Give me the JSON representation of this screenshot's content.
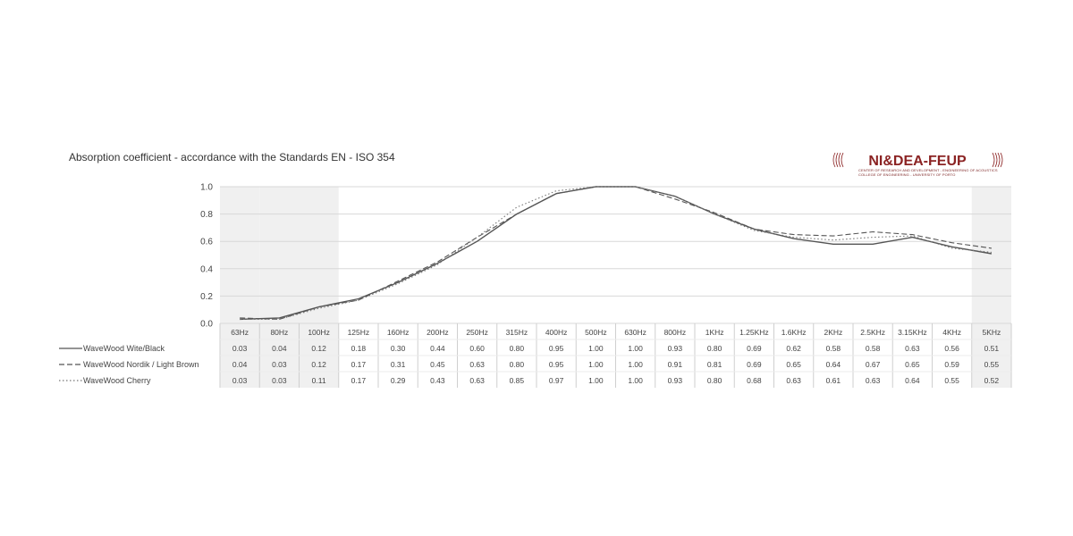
{
  "title": "Absorption coefficient   -   accordance with the Standards EN - ISO 354",
  "logo": {
    "text": "NI&DEA-FEUP",
    "subtext_line1": "CENTER OF RESEARCH AND DEVELOPMENT - ENGINEERING OF ACOUSTICS",
    "subtext_line2": "COLLEGE OF ENGINEERING - UNIVERSITY OF PORTO",
    "color": "#8b2323"
  },
  "chart_data": {
    "type": "line",
    "title": "Absorption coefficient   -   accordance with the Standards EN - ISO 354",
    "xlabel": "",
    "ylabel": "",
    "ylim": [
      0,
      1
    ],
    "yticks": [
      "0.0",
      "0.2",
      "0.4",
      "0.6",
      "0.8",
      "1.0"
    ],
    "grid": true,
    "categories": [
      "63Hz",
      "80Hz",
      "100Hz",
      "125Hz",
      "160Hz",
      "200Hz",
      "250Hz",
      "315Hz",
      "400Hz",
      "500Hz",
      "630Hz",
      "800Hz",
      "1KHz",
      "1.25KHz",
      "1.6KHz",
      "2KHz",
      "2.5KHz",
      "3.15KHz",
      "4KHz",
      "5KHz"
    ],
    "shaded_categories": [
      "63Hz",
      "80Hz",
      "100Hz",
      "5KHz"
    ],
    "series": [
      {
        "name": "WaveWood Wite/Black",
        "style": "solid",
        "color": "#555555",
        "values": [
          0.03,
          0.04,
          0.12,
          0.18,
          0.3,
          0.44,
          0.6,
          0.8,
          0.95,
          1.0,
          1.0,
          0.93,
          0.8,
          0.69,
          0.62,
          0.58,
          0.58,
          0.63,
          0.56,
          0.51
        ],
        "labels": [
          "0.03",
          "0.04",
          "0.12",
          "0.18",
          "0.30",
          "0.44",
          "0.60",
          "0.80",
          "0.95",
          "1.00",
          "1.00",
          "0.93",
          "0.80",
          "0.69",
          "0.62",
          "0.58",
          "0.58",
          "0.63",
          "0.56",
          "0.51"
        ]
      },
      {
        "name": "WaveWood  Nordik / Light Brown",
        "style": "dashed",
        "color": "#555555",
        "values": [
          0.04,
          0.03,
          0.12,
          0.17,
          0.31,
          0.45,
          0.63,
          0.8,
          0.95,
          1.0,
          1.0,
          0.91,
          0.81,
          0.69,
          0.65,
          0.64,
          0.67,
          0.65,
          0.59,
          0.55
        ],
        "labels": [
          "0.04",
          "0.03",
          "0.12",
          "0.17",
          "0.31",
          "0.45",
          "0.63",
          "0.80",
          "0.95",
          "1.00",
          "1.00",
          "0.91",
          "0.81",
          "0.69",
          "0.65",
          "0.64",
          "0.67",
          "0.65",
          "0.59",
          "0.55"
        ]
      },
      {
        "name": "WaveWood Cherry",
        "style": "dotted",
        "color": "#777777",
        "values": [
          0.03,
          0.03,
          0.11,
          0.17,
          0.29,
          0.43,
          0.63,
          0.85,
          0.97,
          1.0,
          1.0,
          0.93,
          0.8,
          0.68,
          0.63,
          0.61,
          0.63,
          0.64,
          0.55,
          0.52
        ],
        "labels": [
          "0.03",
          "0.03",
          "0.11",
          "0.17",
          "0.29",
          "0.43",
          "0.63",
          "0.85",
          "0.97",
          "1.00",
          "1.00",
          "0.93",
          "0.80",
          "0.68",
          "0.63",
          "0.61",
          "0.63",
          "0.64",
          "0.55",
          "0.52"
        ]
      }
    ]
  }
}
